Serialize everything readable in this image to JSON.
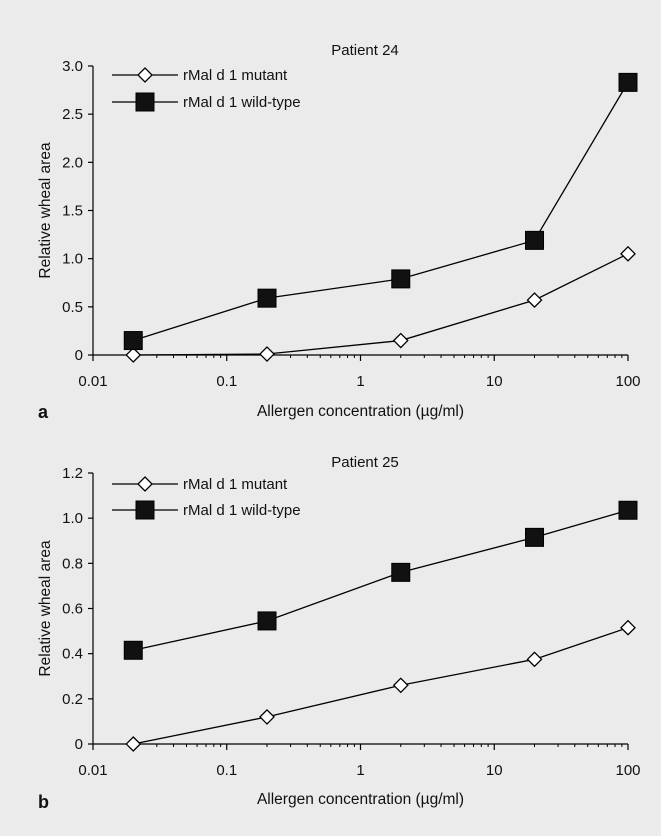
{
  "chart_data": [
    {
      "type": "line",
      "panel_label": "a",
      "title": "Patient 24",
      "xlabel": "Allergen concentration (µg/ml)",
      "ylabel": "Relative wheal area",
      "x_scale": "log",
      "xlim": [
        0.01,
        100
      ],
      "ylim": [
        0,
        3.0
      ],
      "x_ticks": [
        "0.01",
        "0.1",
        "1",
        "10",
        "100"
      ],
      "y_ticks": [
        "0",
        "0.5",
        "1.0",
        "1.5",
        "2.0",
        "2.5",
        "3.0"
      ],
      "x": [
        0.02,
        0.2,
        2,
        20,
        100
      ],
      "legend_position": "top-left",
      "grid": false,
      "series": [
        {
          "name": "rMal d 1 mutant",
          "marker": "open-diamond",
          "color": "#000000",
          "values": [
            0,
            0.01,
            0.15,
            0.57,
            1.05
          ]
        },
        {
          "name": "rMal d 1 wild-type",
          "marker": "filled-square",
          "color": "#000000",
          "values": [
            0.15,
            0.59,
            0.79,
            1.19,
            2.83
          ]
        }
      ]
    },
    {
      "type": "line",
      "panel_label": "b",
      "title": "Patient 25",
      "xlabel": "Allergen concentration (µg/ml)",
      "ylabel": "Relative wheal area",
      "x_scale": "log",
      "xlim": [
        0.01,
        100
      ],
      "ylim": [
        0,
        1.2
      ],
      "x_ticks": [
        "0.01",
        "0.1",
        "1",
        "10",
        "100"
      ],
      "y_ticks": [
        "0",
        "0.2",
        "0.4",
        "0.6",
        "0.8",
        "1.0",
        "1.2"
      ],
      "x": [
        0.02,
        0.2,
        2,
        20,
        100
      ],
      "legend_position": "top-left",
      "grid": false,
      "series": [
        {
          "name": "rMal d 1 mutant",
          "marker": "open-diamond",
          "color": "#000000",
          "values": [
            0,
            0.12,
            0.26,
            0.375,
            0.515
          ]
        },
        {
          "name": "rMal d 1 wild-type",
          "marker": "filled-square",
          "color": "#000000",
          "values": [
            0.415,
            0.545,
            0.76,
            0.915,
            1.035
          ]
        }
      ]
    }
  ]
}
